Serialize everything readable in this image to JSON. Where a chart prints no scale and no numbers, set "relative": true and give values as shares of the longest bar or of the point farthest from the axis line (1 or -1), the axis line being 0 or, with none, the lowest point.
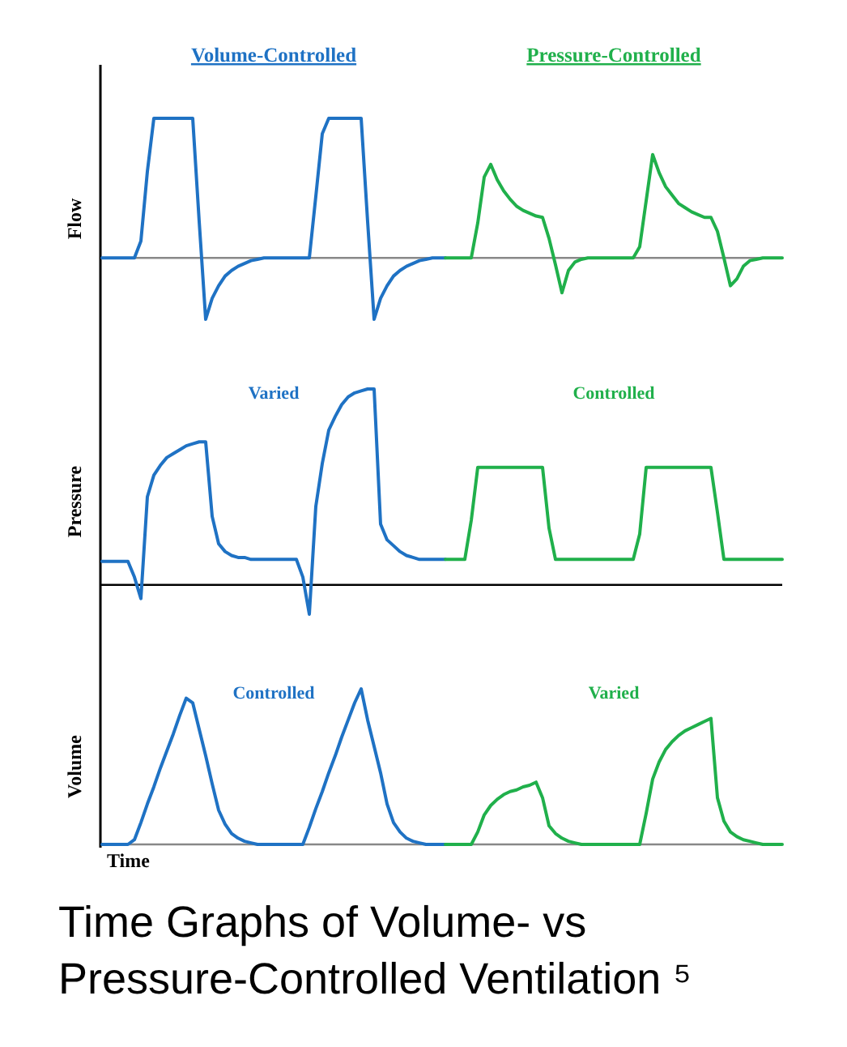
{
  "chart_data": [
    {
      "type": "line",
      "relative": true,
      "ylabel": "Flow",
      "legend": "top",
      "categories": [
        null,
        null,
        null,
        null,
        null,
        null,
        null,
        null,
        null,
        null,
        null,
        null,
        null,
        null,
        null,
        null,
        null,
        null,
        null,
        null,
        null,
        null,
        null,
        null,
        null,
        null,
        null,
        null,
        null,
        null,
        null,
        null,
        null,
        null,
        null,
        null,
        null,
        null,
        null,
        null,
        null,
        null,
        null,
        null,
        null,
        null,
        null,
        null,
        null,
        null,
        null,
        null,
        null,
        null,
        null,
        null,
        null,
        null,
        null,
        null,
        null,
        null,
        null,
        null,
        null,
        null,
        null,
        null,
        null,
        null,
        null,
        null,
        null,
        null,
        null,
        null,
        null,
        null,
        null,
        null,
        null,
        null,
        null,
        null,
        null,
        null,
        null,
        null,
        null,
        null,
        null,
        null,
        null,
        null,
        null,
        null,
        null,
        null,
        null,
        null,
        null,
        null,
        null,
        null,
        null,
        null
      ],
      "series": [
        {
          "name": "Volume-Controlled",
          "color": "#1f72c4",
          "values": [
            0,
            0,
            0,
            0,
            0,
            0,
            0.12,
            0.62,
            1,
            1,
            1,
            1,
            1,
            1,
            1,
            0.26,
            -0.44,
            -0.29,
            -0.2,
            -0.13,
            -0.09,
            -0.06,
            -0.04,
            -0.02,
            -0.01,
            0,
            0,
            0,
            0,
            0,
            0,
            0,
            0,
            0.44,
            0.89,
            1,
            1,
            1,
            1,
            1,
            1,
            0.26,
            -0.44,
            -0.29,
            -0.2,
            -0.13,
            -0.09,
            -0.06,
            -0.04,
            -0.02,
            -0.01,
            0,
            0,
            0,
            null,
            null,
            null,
            null,
            null,
            null,
            null,
            null,
            null,
            null,
            null,
            null,
            null,
            null,
            null,
            null,
            null,
            null,
            null,
            null,
            null,
            null,
            null,
            null,
            null,
            null,
            null,
            null,
            null,
            null,
            null,
            null,
            null,
            null,
            null,
            null,
            null,
            null,
            null,
            null,
            null,
            null,
            null,
            null,
            null,
            null,
            null,
            null,
            null,
            null,
            null,
            null
          ]
        },
        {
          "name": "Pressure-Controlled",
          "color": "#20b04b",
          "values": [
            null,
            null,
            null,
            null,
            null,
            null,
            null,
            null,
            null,
            null,
            null,
            null,
            null,
            null,
            null,
            null,
            null,
            null,
            null,
            null,
            null,
            null,
            null,
            null,
            null,
            null,
            null,
            null,
            null,
            null,
            null,
            null,
            null,
            null,
            null,
            null,
            null,
            null,
            null,
            null,
            null,
            null,
            null,
            null,
            null,
            null,
            null,
            null,
            null,
            null,
            null,
            null,
            null,
            0,
            0,
            0,
            0,
            0,
            0.25,
            0.58,
            0.67,
            0.56,
            0.48,
            0.42,
            0.37,
            0.34,
            0.32,
            0.3,
            0.29,
            0.14,
            -0.05,
            -0.25,
            -0.09,
            -0.03,
            -0.01,
            0,
            0,
            0,
            0,
            0,
            0,
            0,
            0,
            0.08,
            0.41,
            0.74,
            0.61,
            0.51,
            0.45,
            0.39,
            0.36,
            0.33,
            0.31,
            0.29,
            0.29,
            0.19,
            0,
            -0.2,
            -0.15,
            -0.06,
            -0.02,
            -0.01,
            0,
            0,
            0,
            0
          ]
        }
      ]
    },
    {
      "type": "line",
      "relative": true,
      "ylabel": "Pressure",
      "annotations": [
        "Varied",
        "Controlled"
      ],
      "categories": [
        null,
        null,
        null,
        null,
        null,
        null,
        null,
        null,
        null,
        null,
        null,
        null,
        null,
        null,
        null,
        null,
        null,
        null,
        null,
        null,
        null,
        null,
        null,
        null,
        null,
        null,
        null,
        null,
        null,
        null,
        null,
        null,
        null,
        null,
        null,
        null,
        null,
        null,
        null,
        null,
        null,
        null,
        null,
        null,
        null,
        null,
        null,
        null,
        null,
        null,
        null,
        null,
        null,
        null,
        null,
        null,
        null,
        null,
        null,
        null,
        null,
        null,
        null,
        null,
        null,
        null,
        null,
        null,
        null,
        null,
        null,
        null,
        null,
        null,
        null,
        null,
        null,
        null,
        null,
        null,
        null,
        null,
        null,
        null,
        null,
        null,
        null,
        null,
        null,
        null,
        null,
        null,
        null,
        null,
        null,
        null,
        null,
        null,
        null,
        null,
        null,
        null,
        null,
        null,
        null,
        null
      ],
      "series": [
        {
          "color": "#1f72c4",
          "values": [
            0.12,
            0.12,
            0.12,
            0.12,
            0.12,
            0.04,
            -0.07,
            0.45,
            0.56,
            0.61,
            0.65,
            0.67,
            0.69,
            0.71,
            0.72,
            0.73,
            0.73,
            0.35,
            0.21,
            0.17,
            0.15,
            0.14,
            0.14,
            0.13,
            0.13,
            0.13,
            0.13,
            0.13,
            0.13,
            0.13,
            0.13,
            0.04,
            -0.15,
            0.4,
            0.62,
            0.79,
            0.86,
            0.92,
            0.96,
            0.98,
            0.99,
            1,
            1,
            0.31,
            0.23,
            0.2,
            0.17,
            0.15,
            0.14,
            0.13,
            0.13,
            0.13,
            0.13,
            0.13,
            null,
            null,
            null,
            null,
            null,
            null,
            null,
            null,
            null,
            null,
            null,
            null,
            null,
            null,
            null,
            null,
            null,
            null,
            null,
            null,
            null,
            null,
            null,
            null,
            null,
            null,
            null,
            null,
            null,
            null,
            null,
            null,
            null,
            null,
            null,
            null,
            null,
            null,
            null,
            null,
            null,
            null,
            null,
            null,
            null,
            null,
            null,
            null,
            null,
            null,
            null,
            null
          ]
        },
        {
          "color": "#20b04b",
          "values": [
            null,
            null,
            null,
            null,
            null,
            null,
            null,
            null,
            null,
            null,
            null,
            null,
            null,
            null,
            null,
            null,
            null,
            null,
            null,
            null,
            null,
            null,
            null,
            null,
            null,
            null,
            null,
            null,
            null,
            null,
            null,
            null,
            null,
            null,
            null,
            null,
            null,
            null,
            null,
            null,
            null,
            null,
            null,
            null,
            null,
            null,
            null,
            null,
            null,
            null,
            null,
            null,
            null,
            0.13,
            0.13,
            0.13,
            0.13,
            0.33,
            0.6,
            0.6,
            0.6,
            0.6,
            0.6,
            0.6,
            0.6,
            0.6,
            0.6,
            0.6,
            0.6,
            0.29,
            0.13,
            0.13,
            0.13,
            0.13,
            0.13,
            0.13,
            0.13,
            0.13,
            0.13,
            0.13,
            0.13,
            0.13,
            0.13,
            0.26,
            0.6,
            0.6,
            0.6,
            0.6,
            0.6,
            0.6,
            0.6,
            0.6,
            0.6,
            0.6,
            0.6,
            0.37,
            0.13,
            0.13,
            0.13,
            0.13,
            0.13,
            0.13,
            0.13,
            0.13,
            0.13,
            0.13
          ]
        }
      ]
    },
    {
      "type": "line",
      "relative": true,
      "ylabel": "Volume",
      "xlabel": "Time",
      "annotations": [
        "Controlled",
        "Varied",
        "Time Graphs of Volume- vs Pressure-Controlled Ventilation ⁵"
      ],
      "categories": [
        null,
        null,
        null,
        null,
        null,
        null,
        null,
        null,
        null,
        null,
        null,
        null,
        null,
        null,
        null,
        null,
        null,
        null,
        null,
        null,
        null,
        null,
        null,
        null,
        null,
        null,
        null,
        null,
        null,
        null,
        null,
        null,
        null,
        null,
        null,
        null,
        null,
        null,
        null,
        null,
        null,
        null,
        null,
        null,
        null,
        null,
        null,
        null,
        null,
        null,
        null,
        null,
        null,
        null,
        null,
        null,
        null,
        null,
        null,
        null,
        null,
        null,
        null,
        null,
        null,
        null,
        null,
        null,
        null,
        null,
        null,
        null,
        null,
        null,
        null,
        null,
        null,
        null,
        null,
        null,
        null,
        null,
        null,
        null,
        null,
        null,
        null,
        null,
        null,
        null,
        null,
        null,
        null,
        null,
        null,
        null,
        null,
        null,
        null,
        null,
        null,
        null,
        null,
        null,
        null,
        null
      ],
      "series": [
        {
          "color": "#1f72c4",
          "values": [
            0,
            0,
            0,
            0,
            0,
            0.03,
            0.14,
            0.26,
            0.37,
            0.49,
            0.6,
            0.71,
            0.83,
            0.94,
            0.91,
            0.74,
            0.57,
            0.39,
            0.22,
            0.13,
            0.07,
            0.04,
            0.02,
            0.01,
            0,
            0,
            0,
            0,
            0,
            0,
            0,
            0,
            0.11,
            0.23,
            0.34,
            0.46,
            0.57,
            0.69,
            0.8,
            0.91,
            1,
            0.8,
            0.63,
            0.46,
            0.26,
            0.14,
            0.08,
            0.04,
            0.02,
            0.01,
            0,
            0,
            0,
            0,
            null,
            null,
            null,
            null,
            null,
            null,
            null,
            null,
            null,
            null,
            null,
            null,
            null,
            null,
            null,
            null,
            null,
            null,
            null,
            null,
            null,
            null,
            null,
            null,
            null,
            null,
            null,
            null,
            null,
            null,
            null,
            null,
            null,
            null,
            null,
            null,
            null,
            null,
            null,
            null,
            null,
            null,
            null,
            null,
            null,
            null,
            null,
            null,
            null,
            null,
            null,
            null
          ]
        },
        {
          "color": "#20b04b",
          "values": [
            null,
            null,
            null,
            null,
            null,
            null,
            null,
            null,
            null,
            null,
            null,
            null,
            null,
            null,
            null,
            null,
            null,
            null,
            null,
            null,
            null,
            null,
            null,
            null,
            null,
            null,
            null,
            null,
            null,
            null,
            null,
            null,
            null,
            null,
            null,
            null,
            null,
            null,
            null,
            null,
            null,
            null,
            null,
            null,
            null,
            null,
            null,
            null,
            null,
            null,
            null,
            null,
            null,
            0,
            0,
            0,
            0,
            0,
            0.08,
            0.19,
            0.25,
            0.29,
            0.32,
            0.34,
            0.35,
            0.37,
            0.38,
            0.4,
            0.3,
            0.12,
            0.07,
            0.04,
            0.02,
            0.01,
            0,
            0,
            0,
            0,
            0,
            0,
            0,
            0,
            0,
            0,
            0.2,
            0.42,
            0.53,
            0.61,
            0.66,
            0.7,
            0.73,
            0.75,
            0.77,
            0.79,
            0.81,
            0.3,
            0.15,
            0.08,
            0.05,
            0.03,
            0.02,
            0.01,
            0,
            0,
            0,
            0
          ]
        }
      ]
    }
  ]
}
